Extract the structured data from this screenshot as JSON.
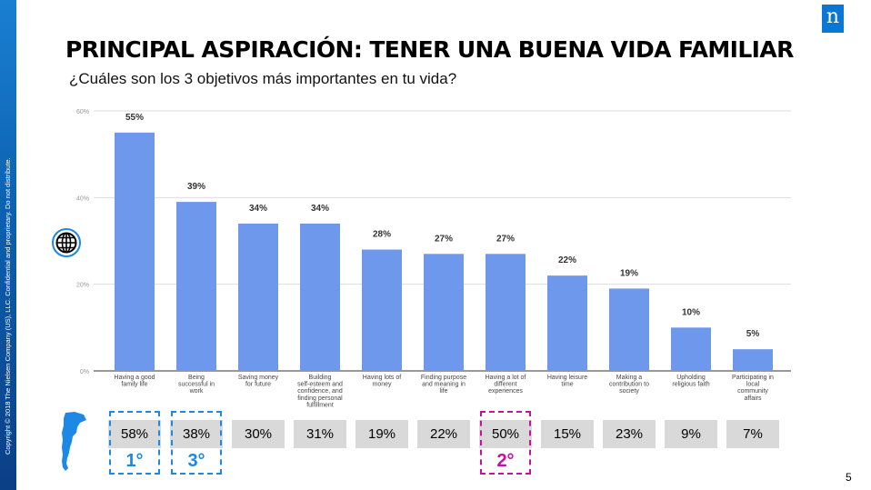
{
  "side_text": "Copyright © 2018 The Nielsen Company (US), LLC. Confidential and proprietary. Do not distribute.",
  "logo_letter": "n",
  "title": "PRINCIPAL ASPIRACIÓN: TENER UNA BUENA VIDA FAMILIAR",
  "subtitle": "¿Cuáles son los 3 objetivos más importantes en tu vida?",
  "page_number": "5",
  "colors": {
    "bar": "#6d98ec",
    "accent_blue": "#1e88e5",
    "accent_magenta": "#c2139e",
    "box": "#d9d9d9"
  },
  "chart_data": {
    "type": "bar",
    "categories": [
      [
        "Having a good",
        "family life"
      ],
      [
        "Being",
        "successful in",
        "work"
      ],
      [
        "Saving money",
        "for future"
      ],
      [
        "Building",
        "self-esteem and",
        "confidence, and",
        "finding personal",
        "fulfillment"
      ],
      [
        "Having lots of",
        "money"
      ],
      [
        "Finding purpose",
        "and meaning in",
        "life"
      ],
      [
        "Having a lot of",
        "different",
        "experiences"
      ],
      [
        "Having leisure",
        "time"
      ],
      [
        "Making a",
        "contribution to",
        "society"
      ],
      [
        "Upholding",
        "religious faith"
      ],
      [
        "Participating in",
        "local",
        "community",
        "affairs"
      ]
    ],
    "values": [
      55,
      39,
      34,
      34,
      28,
      27,
      27,
      22,
      19,
      10,
      5
    ],
    "data_labels": [
      "55%",
      "39%",
      "34%",
      "34%",
      "28%",
      "27%",
      "27%",
      "22%",
      "19%",
      "10%",
      "5%"
    ],
    "yticks": [
      "0%",
      "20%",
      "40%",
      "60%"
    ],
    "ylim": [
      0,
      60
    ],
    "grid": true
  },
  "local_results": [
    "58%",
    "38%",
    "30%",
    "31%",
    "19%",
    "22%",
    "50%",
    "15%",
    "23%",
    "9%",
    "7%"
  ],
  "ranks": [
    {
      "column": 0,
      "label": "1°",
      "color": "blue"
    },
    {
      "column": 1,
      "label": "3°",
      "color": "blue"
    },
    {
      "column": 6,
      "label": "2°",
      "color": "magenta"
    }
  ]
}
